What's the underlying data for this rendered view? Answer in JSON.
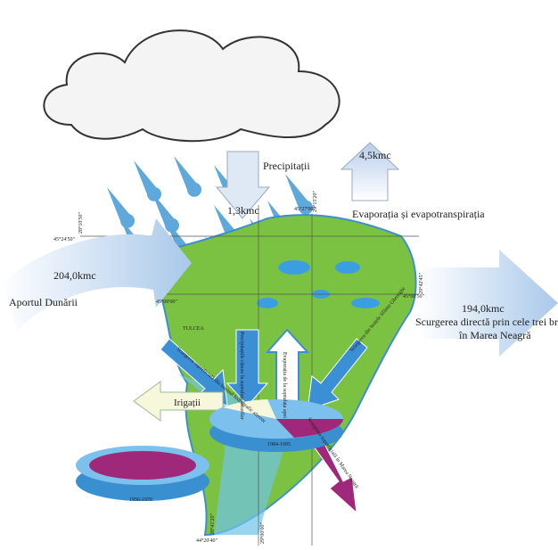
{
  "flows": {
    "evaporation": {
      "value": "4,5kmc",
      "label": "Evaporația și evapotranspirația"
    },
    "precipitation": {
      "label": "Precipitații",
      "value": "1,3kmc"
    },
    "danube_input": {
      "value": "204,0kmc",
      "label": "Aportul Dunării"
    },
    "outflow": {
      "value": "194,0kmc",
      "label": "Scurgerea directă prin cele trei brațe",
      "label2": "în Marea Neagră"
    },
    "irrigation": {
      "label": "Irigații"
    },
    "inner_arrows": [
      "Scurgerea superficială din bazinul hidrografic aferent",
      "Precipitațiile căzute la suprafața lacurilor",
      "Evaporația de la suprafața apei",
      "Scurgerea din brațele Sfântu Gheorghe",
      "Scurgerea superficială în Marea Neagră"
    ]
  },
  "places": {
    "city": "TULCEA"
  },
  "periods": [
    "1984-1995",
    "1956-1970"
  ],
  "coordinates": [
    "28°10'50\"",
    "45°24'50\"",
    "29°15'20\"",
    "45°27'00\"",
    "29°42'45\"",
    "45°00'50\"",
    "45°00'00\"",
    "28°41'20\"",
    "44°20'40\"",
    "29°00'00\""
  ]
}
